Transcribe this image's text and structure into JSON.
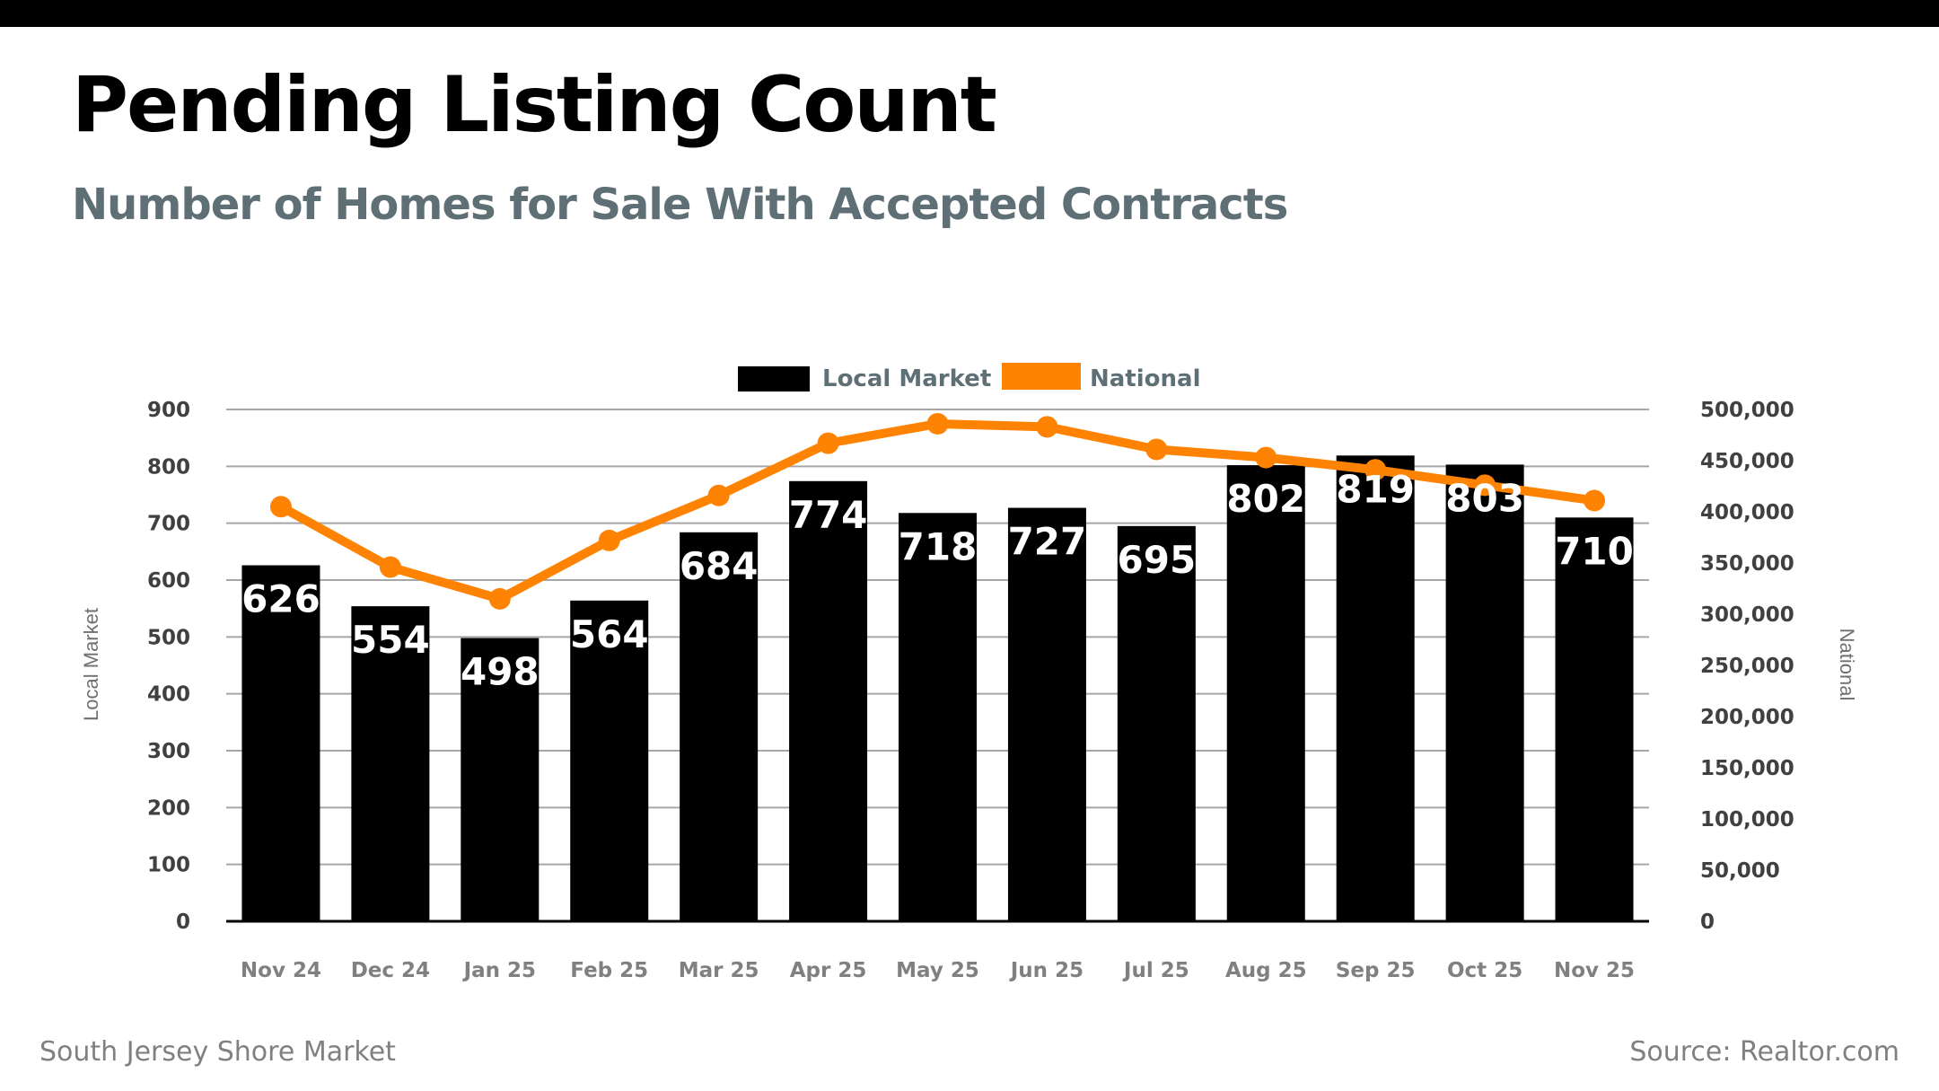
{
  "header": {
    "title": "Pending Listing Count",
    "subtitle": "Number of Homes for Sale With Accepted Contracts"
  },
  "footer": {
    "market": "South Jersey Shore Market",
    "source": "Source: Realtor.com"
  },
  "colors": {
    "local": "#000000",
    "national": "#FF8303",
    "grid": "#a6a6a6",
    "subtitle": "#5f6f76"
  },
  "chart_data": {
    "type": "bar",
    "title": "Pending Listing Count",
    "subtitle": "Number of Homes for Sale With Accepted Contracts",
    "categories": [
      "Nov 24",
      "Dec 24",
      "Jan 25",
      "Feb 25",
      "Mar 25",
      "Apr 25",
      "May 25",
      "Jun 25",
      "Jul 25",
      "Aug 25",
      "Sep 25",
      "Oct 25",
      "Nov 25"
    ],
    "series": [
      {
        "name": "Local Market",
        "type": "bar",
        "axis": "left",
        "values": [
          626,
          554,
          498,
          564,
          684,
          774,
          718,
          727,
          695,
          802,
          819,
          803,
          710
        ],
        "data_labels": [
          "626",
          "554",
          "498",
          "564",
          "684",
          "774",
          "718",
          "727",
          "695",
          "802",
          "819",
          "803",
          "710"
        ]
      },
      {
        "name": "National",
        "type": "line",
        "axis": "right",
        "values": [
          405000,
          346000,
          315000,
          372000,
          416000,
          467000,
          486000,
          483000,
          461000,
          453000,
          441000,
          426000,
          411000
        ]
      }
    ],
    "left_axis": {
      "label": "Local Market",
      "range": [
        0,
        900
      ],
      "ticks": [
        0,
        100,
        200,
        300,
        400,
        500,
        600,
        700,
        800,
        900
      ],
      "tick_labels": [
        "0",
        "100",
        "200",
        "300",
        "400",
        "500",
        "600",
        "700",
        "800",
        "900"
      ]
    },
    "right_axis": {
      "label": "National",
      "range": [
        0,
        500000
      ],
      "ticks": [
        0,
        50000,
        100000,
        150000,
        200000,
        250000,
        300000,
        350000,
        400000,
        450000,
        500000
      ],
      "tick_labels": [
        "0",
        "50,000",
        "100,000",
        "150,000",
        "200,000",
        "250,000",
        "300,000",
        "350,000",
        "400,000",
        "450,000",
        "500,000"
      ]
    },
    "xlabel": "",
    "grid": true,
    "legend": {
      "position": "top-center",
      "entries": [
        "Local Market",
        "National"
      ]
    }
  }
}
